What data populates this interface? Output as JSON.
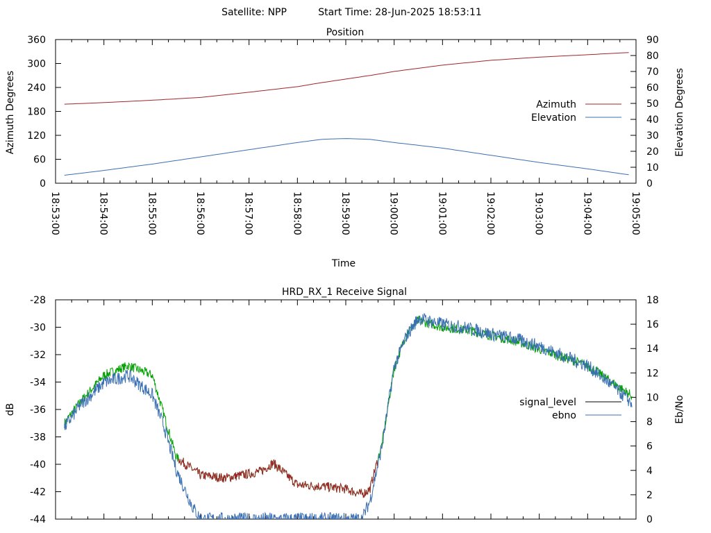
{
  "header": {
    "satellite": "Satellite: NPP",
    "start_time": "Start Time: 28-Jun-2025 18:53:11"
  },
  "colors": {
    "azimuth": "#a0262b",
    "elevation": "#3b6fb3",
    "signal_level": "#000000",
    "ebno": "#3b6fb3",
    "signal_green": "#00a000",
    "signal_red": "#a0262b"
  },
  "chart_data": [
    {
      "type": "line",
      "title": "Position",
      "xlabel": "Time",
      "ylabel": "Azimuth Degrees",
      "y2label": "Elevation Degrees",
      "xlim": [
        "18:53:00",
        "19:05:00"
      ],
      "ylim": [
        0,
        360
      ],
      "y2lim": [
        0,
        90
      ],
      "x_ticks": [
        "18:53:00",
        "18:54:00",
        "18:55:00",
        "18:56:00",
        "18:57:00",
        "18:58:00",
        "18:59:00",
        "19:00:00",
        "19:01:00",
        "19:02:00",
        "19:03:00",
        "19:04:00",
        "19:05:00"
      ],
      "y_ticks": [
        "0",
        "60",
        "120",
        "180",
        "240",
        "300",
        "360"
      ],
      "y2_ticks": [
        "0",
        "10",
        "20",
        "30",
        "40",
        "50",
        "60",
        "70",
        "80",
        "90"
      ],
      "legend_position": "right",
      "series": [
        {
          "name": "Azimuth",
          "axis": "y",
          "x": [
            "18:53:11",
            "18:54:00",
            "18:55:00",
            "18:56:00",
            "18:57:00",
            "18:58:00",
            "18:58:30",
            "18:59:00",
            "18:59:30",
            "19:00:00",
            "19:01:00",
            "19:02:00",
            "19:03:00",
            "19:04:00",
            "19:04:55"
          ],
          "values": [
            198,
            202,
            208,
            215,
            228,
            242,
            252,
            261,
            270,
            280,
            296,
            308,
            316,
            322,
            328
          ]
        },
        {
          "name": "Elevation",
          "axis": "y2",
          "x": [
            "18:53:11",
            "18:54:00",
            "18:55:00",
            "18:56:00",
            "18:57:00",
            "18:58:00",
            "18:58:30",
            "18:59:00",
            "18:59:30",
            "19:00:00",
            "19:01:00",
            "19:02:00",
            "19:03:00",
            "19:04:00",
            "19:04:55"
          ],
          "values": [
            5,
            8,
            12,
            16.5,
            21,
            25.5,
            27.5,
            28,
            27.5,
            25.5,
            22,
            17.5,
            13,
            9,
            5
          ]
        }
      ]
    },
    {
      "type": "line",
      "title": "HRD_RX_1 Receive Signal",
      "ylabel": "dB",
      "y2label": "Eb/No",
      "xlim": [
        "18:53:00",
        "19:05:00"
      ],
      "ylim": [
        -44,
        -28
      ],
      "y2lim": [
        0,
        18
      ],
      "y_ticks": [
        "-44",
        "-42",
        "-40",
        "-38",
        "-36",
        "-34",
        "-32",
        "-30",
        "-28"
      ],
      "y2_ticks": [
        "0",
        "2",
        "4",
        "6",
        "8",
        "10",
        "12",
        "14",
        "16",
        "18"
      ],
      "legend_position": "right",
      "series": [
        {
          "name": "signal_level",
          "axis": "y",
          "x": [
            "18:53:11",
            "18:53:30",
            "18:54:00",
            "18:54:30",
            "18:55:00",
            "18:55:15",
            "18:55:30",
            "18:56:00",
            "18:56:30",
            "18:57:00",
            "18:57:15",
            "18:57:30",
            "18:58:00",
            "18:58:30",
            "18:59:00",
            "18:59:20",
            "18:59:30",
            "18:59:45",
            "19:00:00",
            "19:00:15",
            "19:00:30",
            "19:01:00",
            "19:01:30",
            "19:02:00",
            "19:02:30",
            "19:03:00",
            "19:03:30",
            "19:04:00",
            "19:04:30",
            "19:04:55"
          ],
          "values": [
            -37,
            -35.5,
            -33.5,
            -32.8,
            -33.5,
            -36.5,
            -39.5,
            -40.8,
            -41,
            -40.7,
            -40.5,
            -39.9,
            -41.5,
            -41.6,
            -41.8,
            -42.2,
            -41.8,
            -38.5,
            -33,
            -30.5,
            -29.5,
            -30,
            -30.2,
            -30.6,
            -31,
            -31.6,
            -32.2,
            -32.8,
            -34,
            -35
          ]
        },
        {
          "name": "ebno",
          "axis": "y2",
          "x": [
            "18:53:11",
            "18:53:30",
            "18:54:00",
            "18:54:30",
            "18:55:00",
            "18:55:15",
            "18:55:30",
            "18:55:50",
            "18:56:00",
            "18:59:20",
            "18:59:30",
            "18:59:45",
            "19:00:00",
            "19:00:15",
            "19:00:30",
            "19:01:00",
            "19:01:30",
            "19:02:00",
            "19:02:30",
            "19:03:00",
            "19:03:30",
            "19:04:00",
            "19:04:30",
            "19:04:55"
          ],
          "values": [
            7.5,
            9.3,
            11.2,
            11.8,
            10.2,
            7.5,
            4,
            1,
            0,
            0,
            1.5,
            6,
            12.5,
            15,
            16.5,
            16,
            15.7,
            15.2,
            14.8,
            14.2,
            13.4,
            12.6,
            11,
            9.5
          ]
        }
      ]
    }
  ]
}
